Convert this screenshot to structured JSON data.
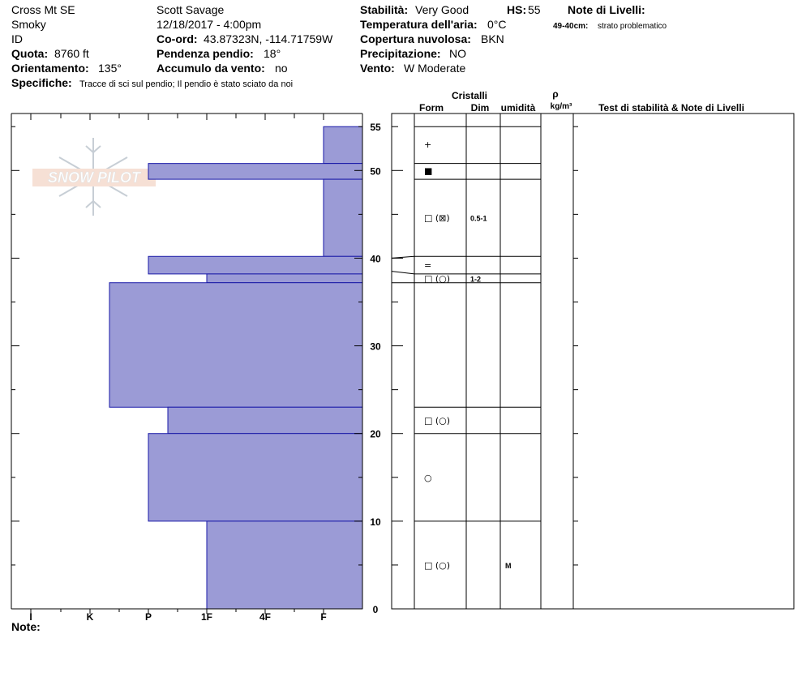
{
  "header": {
    "col1": [
      "Cross Mt SE",
      "Smoky",
      "ID"
    ],
    "quota_label": "Quota:",
    "quota_value": "8760 ft",
    "orient_label": "Orientamento:",
    "orient_value": "135°",
    "observer": "Scott Savage",
    "datetime": "12/18/2017 - 4:00pm",
    "coord_label": "Co-ord:",
    "coord_value": "43.87323N, -114.71759W",
    "pend_label": "Pendenza pendio:",
    "pend_value": "18°",
    "accum_label": "Accumulo da vento:",
    "accum_value": "no",
    "spec_label": "Specifiche:",
    "spec_value": "Tracce di sci sul pendio;  Il pendio è stato sciato da noi",
    "stab_label": "Stabilità:",
    "stab_value": "Very Good",
    "hs_label": "HS:",
    "hs_value": "55",
    "temp_label": "Temperatura dell'aria:",
    "temp_value": "0°C",
    "cop_label": "Copertura nuvolosa:",
    "cop_value": "BKN",
    "prec_label": "Precipitazione:",
    "prec_value": "NO",
    "vento_label": "Vento:",
    "vento_value": "W Moderate",
    "notes_title": "Note di Livelli:",
    "note_range": "49-40cm:",
    "note_text": "strato problematico"
  },
  "table_headers": {
    "cristalli": "Cristalli",
    "form": "Form",
    "dim": "Dim",
    "umidita": "umidità",
    "rho": "ρ",
    "kgm3": "kg/m³",
    "test": "Test di stabilità & Note di Livelli"
  },
  "footer_note": "Note:",
  "logo_text": "SNOW PILOT",
  "chart_data": {
    "type": "bar",
    "y_range": [
      0,
      55
    ],
    "y_ticks": [
      0,
      10,
      20,
      30,
      40,
      50,
      55
    ],
    "hardness_ticks": [
      "I",
      "K",
      "P",
      "1F",
      "4F",
      "F"
    ],
    "hardness_scale": [
      "F",
      "4F",
      "1F",
      "P",
      "K",
      "I"
    ],
    "layers": [
      {
        "bottom": 50.8,
        "top": 55,
        "hardness": "F"
      },
      {
        "bottom": 49,
        "top": 50.8,
        "hardness": "P"
      },
      {
        "bottom": 40.2,
        "top": 49,
        "hardness": "F"
      },
      {
        "bottom": 38.2,
        "top": 40.2,
        "hardness": "P"
      },
      {
        "bottom": 37.2,
        "top": 38.2,
        "hardness": "1F"
      },
      {
        "bottom": 23,
        "top": 37.2,
        "hardness": "K-"
      },
      {
        "bottom": 20,
        "top": 23,
        "hardness": "P-"
      },
      {
        "bottom": 10,
        "top": 20,
        "hardness": "P"
      },
      {
        "bottom": 0,
        "top": 10,
        "hardness": "1F"
      }
    ],
    "crystals": [
      {
        "height": 53,
        "form": "+",
        "dim": "",
        "umidita": ""
      },
      {
        "height": 50,
        "form": "■",
        "dim": "",
        "umidita": ""
      },
      {
        "height": 44.6,
        "form": "□ (⊠)",
        "dim": "0.5-1",
        "umidita": ""
      },
      {
        "height": 39.2,
        "form": "=",
        "dim": "",
        "umidita": ""
      },
      {
        "height": 37.7,
        "form": "□ (○)",
        "dim": "1-2",
        "umidita": ""
      },
      {
        "height": 21.5,
        "form": "□ (○)",
        "dim": "",
        "umidita": ""
      },
      {
        "height": 15,
        "form": "○",
        "dim": "",
        "umidita": ""
      },
      {
        "height": 5,
        "form": "□ (○)",
        "dim": "",
        "umidita": "M"
      }
    ],
    "fill_color": "#9b9bd6",
    "edge_color": "#1a1aa8"
  }
}
